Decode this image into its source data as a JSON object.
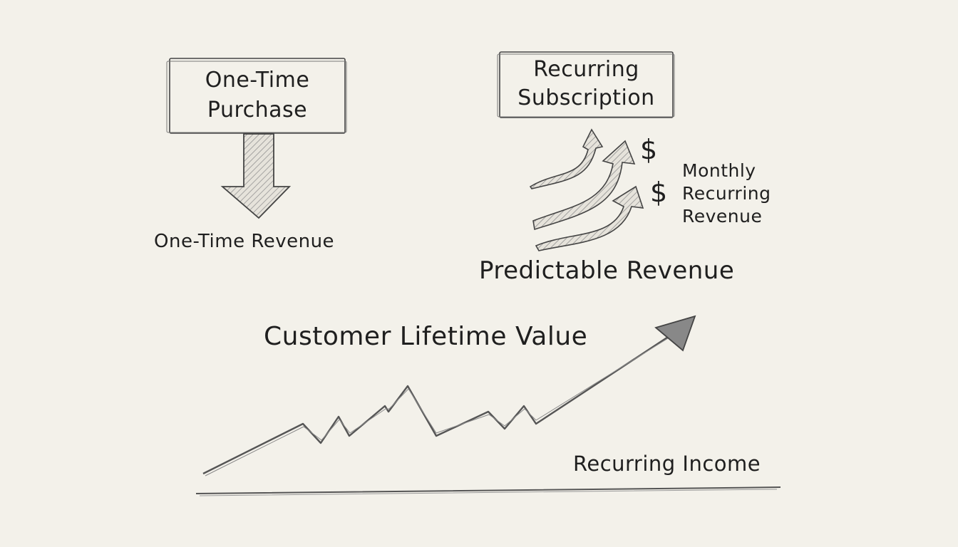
{
  "one_time": {
    "box_label_line1": "One-Time",
    "box_label_line2": "Purchase",
    "result_label": "One-Time Revenue"
  },
  "recurring": {
    "box_label_line1": "Recurring",
    "box_label_line2": "Subscription",
    "dollar_sign": "$",
    "mrr_line1": "Monthly",
    "mrr_line2": "Recurring",
    "mrr_line3": "Revenue",
    "result_label": "Predictable Revenue"
  },
  "growth": {
    "title": "Customer Lifetime Value",
    "baseline_label": "Recurring Income"
  },
  "colors": {
    "paper": "#f3f1ea",
    "pencil": "#3a3a3a"
  }
}
